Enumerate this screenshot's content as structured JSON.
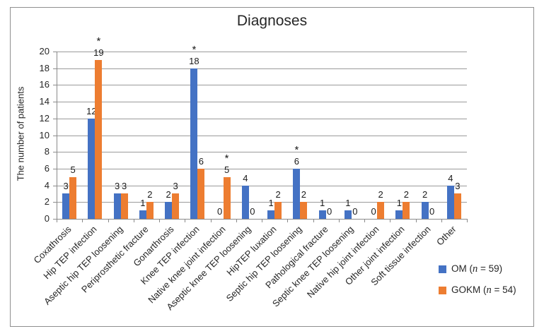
{
  "window": {
    "background": "#ffffff",
    "frame_border_color": "#8f8f8f"
  },
  "chart_data": {
    "type": "bar",
    "title": "Diagnoses",
    "xlabel": "",
    "ylabel": "The number of patients",
    "ylim": [
      0,
      20
    ],
    "yticks": [
      0,
      2,
      4,
      6,
      8,
      10,
      12,
      14,
      16,
      18,
      20
    ],
    "grid": true,
    "value_labels": true,
    "significance_symbol": "*",
    "legend_position": "bottom-right",
    "categories": [
      "Coxathrosis",
      "Hip TEP infection",
      "Aseptic hip TEP loosening",
      "Periprosthetic fracture",
      "Gonarthrosis",
      "Knee TEP infection",
      "Native knee joint infection",
      "Aseptic knee TEP loosening",
      "HipTEP luxation",
      "Septic hip TEP loosening",
      "Pathological fracture",
      "Septic knee TEP loosening",
      "Native hip joint infection",
      "Other joint infection",
      "Soft tissue infection",
      "Other"
    ],
    "series": [
      {
        "name": "OM (n = 59)",
        "color": "#4472C4",
        "values": [
          3,
          12,
          3,
          1,
          2,
          18,
          0,
          4,
          1,
          6,
          1,
          1,
          0,
          1,
          2,
          4
        ]
      },
      {
        "name": "GOKM (n = 54)",
        "color": "#ED7D31",
        "values": [
          5,
          19,
          3,
          2,
          3,
          6,
          5,
          0,
          2,
          2,
          0,
          0,
          2,
          2,
          0,
          3
        ]
      }
    ],
    "starred": [
      {
        "series_index": 1,
        "category_index": 1
      },
      {
        "series_index": 0,
        "category_index": 5
      },
      {
        "series_index": 1,
        "category_index": 6
      },
      {
        "series_index": 0,
        "category_index": 9
      }
    ]
  },
  "legend": {
    "items": [
      {
        "pre": "OM (",
        "var": "n",
        "post": " = 59)",
        "color": "#4472C4"
      },
      {
        "pre": "GOKM (",
        "var": "n",
        "post": " = 54)",
        "color": "#ED7D31"
      }
    ]
  }
}
